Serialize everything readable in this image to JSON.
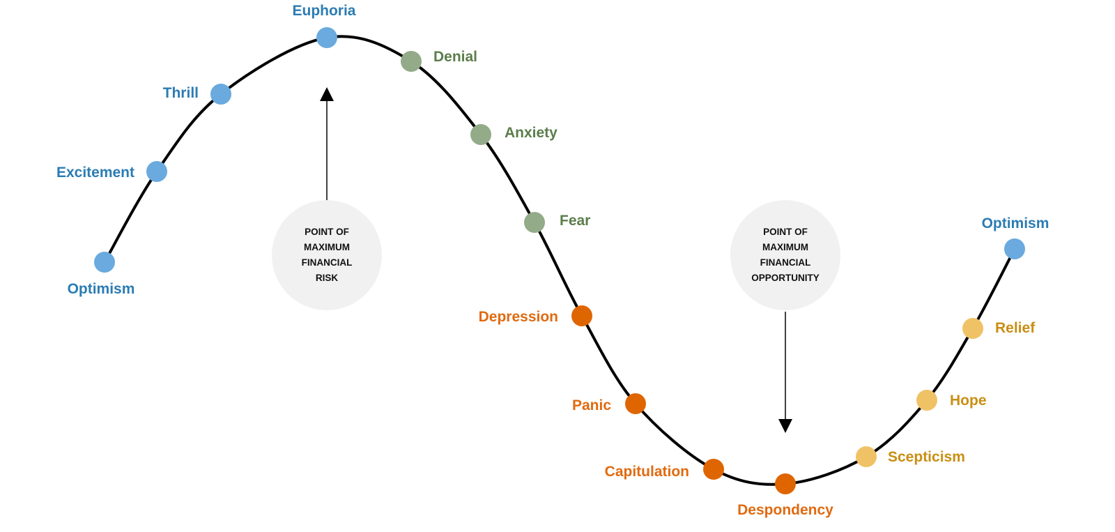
{
  "colors": {
    "optimism": {
      "dot": "#6aaade",
      "text": "#2b7cb3"
    },
    "denial": {
      "dot": "#93ab88",
      "text": "#5b7d4b"
    },
    "depression": {
      "dot": "#df6500",
      "text": "#e06a10"
    },
    "recovery": {
      "dot": "#f0c266",
      "text": "#c98e12"
    },
    "curve": "#000000",
    "callout_bg": "#f1f1f1"
  },
  "stages": [
    {
      "label": "Optimism",
      "group": "optimism"
    },
    {
      "label": "Excitement",
      "group": "optimism"
    },
    {
      "label": "Thrill",
      "group": "optimism"
    },
    {
      "label": "Euphoria",
      "group": "optimism"
    },
    {
      "label": "Denial",
      "group": "denial"
    },
    {
      "label": "Anxiety",
      "group": "denial"
    },
    {
      "label": "Fear",
      "group": "denial"
    },
    {
      "label": "Depression",
      "group": "depression"
    },
    {
      "label": "Panic",
      "group": "depression"
    },
    {
      "label": "Capitulation",
      "group": "depression"
    },
    {
      "label": "Despondency",
      "group": "depression"
    },
    {
      "label": "Scepticism",
      "group": "recovery"
    },
    {
      "label": "Hope",
      "group": "recovery"
    },
    {
      "label": "Relief",
      "group": "recovery"
    },
    {
      "label": "Optimism",
      "group": "optimism"
    }
  ],
  "callouts": {
    "risk": {
      "lines": [
        "POINT OF",
        "MAXIMUM",
        "FINANCIAL",
        "RISK"
      ]
    },
    "opportunity": {
      "lines": [
        "POINT OF",
        "MAXIMUM",
        "FINANCIAL",
        "OPPORTUNITY"
      ]
    }
  }
}
